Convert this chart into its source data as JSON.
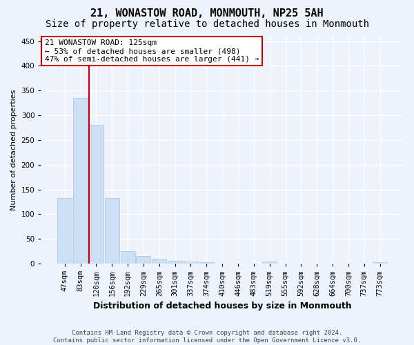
{
  "title": "21, WONASTOW ROAD, MONMOUTH, NP25 5AH",
  "subtitle": "Size of property relative to detached houses in Monmouth",
  "xlabel": "Distribution of detached houses by size in Monmouth",
  "ylabel": "Number of detached properties",
  "bar_color": "#ccdff5",
  "bar_edgecolor": "#aac4e0",
  "vline_color": "#cc0000",
  "vline_x_index": 2,
  "annotation_line1": "21 WONASTOW ROAD: 125sqm",
  "annotation_line2": "← 53% of detached houses are smaller (498)",
  "annotation_line3": "47% of semi-detached houses are larger (441) →",
  "annotation_box_color": "white",
  "annotation_box_edgecolor": "#cc0000",
  "categories": [
    "47sqm",
    "83sqm",
    "120sqm",
    "156sqm",
    "192sqm",
    "229sqm",
    "265sqm",
    "301sqm",
    "337sqm",
    "374sqm",
    "410sqm",
    "446sqm",
    "483sqm",
    "519sqm",
    "555sqm",
    "592sqm",
    "628sqm",
    "664sqm",
    "700sqm",
    "737sqm",
    "773sqm"
  ],
  "values": [
    133,
    335,
    280,
    133,
    26,
    15,
    10,
    6,
    5,
    3,
    0,
    0,
    0,
    4,
    0,
    0,
    0,
    0,
    0,
    0,
    3
  ],
  "ylim": [
    0,
    460
  ],
  "yticks": [
    0,
    50,
    100,
    150,
    200,
    250,
    300,
    350,
    400,
    450
  ],
  "footer_line1": "Contains HM Land Registry data © Crown copyright and database right 2024.",
  "footer_line2": "Contains public sector information licensed under the Open Government Licence v3.0.",
  "background_color": "#eef2fa",
  "grid_color": "#ffffff",
  "title_fontsize": 11,
  "subtitle_fontsize": 10,
  "ylabel_fontsize": 8,
  "xlabel_fontsize": 9,
  "tick_fontsize": 7.5,
  "annotation_fontsize": 8,
  "footer_fontsize": 6.5
}
